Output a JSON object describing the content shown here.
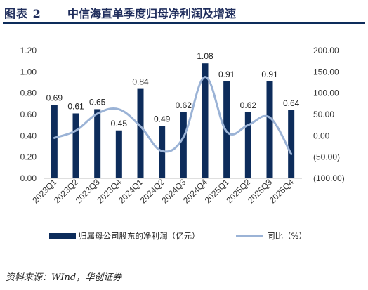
{
  "header": {
    "fig_label": "图表 2",
    "title": "中信海直单季度归母净利润及增速"
  },
  "source": "资料来源：WInd，华创证券",
  "chart_data": {
    "type": "bar",
    "categories": [
      "2023Q1",
      "2023Q2",
      "2023Q3",
      "2023Q4",
      "2024Q1",
      "2024Q2",
      "2024Q3",
      "2024Q4",
      "2025Q1",
      "2025Q2",
      "2025Q3",
      "2025Q4"
    ],
    "series": [
      {
        "name": "归属母公司股东的净利润（亿元）",
        "type": "bar",
        "axis": "left",
        "color": "#0d2c5b",
        "values": [
          0.69,
          0.61,
          0.65,
          0.45,
          0.84,
          0.49,
          0.62,
          1.08,
          0.91,
          0.62,
          0.91,
          0.64
        ],
        "labels": [
          "0.69",
          "0.61",
          "0.65",
          "0.45",
          "0.84",
          "0.49",
          "0.62",
          "1.08",
          "0.91",
          "0.62",
          "0.91",
          "0.64"
        ]
      },
      {
        "name": "同比（%）",
        "type": "line",
        "axis": "right",
        "color": "#9bb3d6",
        "values": [
          -5,
          12,
          52,
          62,
          22,
          -36,
          -3,
          138,
          10,
          25,
          43,
          -43
        ]
      }
    ],
    "y_left": {
      "min": 0,
      "max": 1.2,
      "ticks": [
        0,
        0.2,
        0.4,
        0.6,
        0.8,
        1.0,
        1.2
      ],
      "tick_labels": [
        "0.00",
        "0.20",
        "0.40",
        "0.60",
        "0.80",
        "1.00",
        "1.20"
      ]
    },
    "y_right": {
      "min": -100,
      "max": 200,
      "ticks": [
        -100,
        -50,
        0,
        50,
        100,
        150,
        200
      ],
      "tick_labels": [
        "(100.00)",
        "(50.00)",
        "0.00",
        "50.00",
        "100.00",
        "150.00",
        "200.00"
      ],
      "negative_color": "#e03030"
    },
    "grid": false,
    "legend_position": "bottom"
  }
}
